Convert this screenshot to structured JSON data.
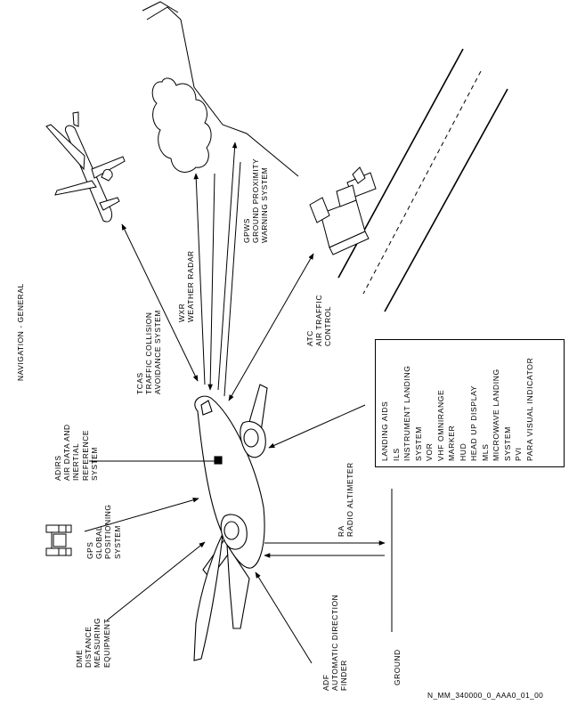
{
  "title": "NAVIGATION - GENERAL",
  "labels": {
    "tcas": "TCAS\nTRAFFIC COLLISION\nAVOIDANCE SYSTEM",
    "wxr": "WXR\nWEATHER RADAR",
    "gpws": "GPWS\nGROUND PROXIMITY\nWARNING SYSTEM",
    "atc": "ATC\nAIR TRAFFIC\nCONTROL",
    "adirs": "ADIRS\nAIR DATA AND\nINERTIAL\nREFERENCE\nSYSTEM",
    "gps": "GPS\nGLOBAL\nPOSITIONING\nSYSTEM",
    "dme": "DME\nDISTANCE\nMEASURING\nEQUIPMENT",
    "adf": "ADF\nAUTOMATIC DIRECTION\nFINDER",
    "ra": "RA\nRADIO ALTIMETER",
    "ground": "GROUND"
  },
  "landing_aids": "LANDING AIDS\nILS\nINSTRUMENT LANDING\nSYSTEM\nVOR\nVHF OMNIRANGE\nMARKER\nHUD\nHEAD UP DISPLAY\nMLS\nMICROWAVE LANDING\nSYSTEM\nPVI\nPARA VISUAL INDICATOR",
  "reference": "N_MM_340000_0_AAA0_01_00"
}
